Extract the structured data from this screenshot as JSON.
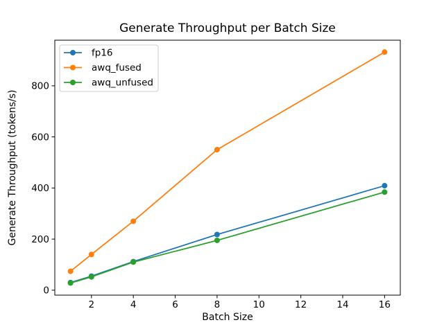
{
  "figure": {
    "background": "#ffffff"
  },
  "chart_data": {
    "type": "line",
    "title": "Generate Throughput per Batch Size",
    "xlabel": "Batch Size",
    "ylabel": "Generate Throughput (tokens/s)",
    "x": [
      1,
      2,
      4,
      8,
      16
    ],
    "series": [
      {
        "name": "fp16",
        "color": "#1f77b4",
        "values": [
          30,
          55,
          112,
          218,
          409
        ]
      },
      {
        "name": "awq_fused",
        "color": "#ff7f0e",
        "values": [
          74,
          140,
          270,
          550,
          932
        ]
      },
      {
        "name": "awq_unfused",
        "color": "#2ca02c",
        "values": [
          28,
          52,
          110,
          195,
          384
        ]
      }
    ],
    "marker": "o",
    "xticks": [
      2,
      4,
      6,
      8,
      10,
      12,
      14,
      16
    ],
    "yticks": [
      0,
      200,
      400,
      600,
      800
    ],
    "xlim": [
      0.25,
      16.75
    ],
    "ylim": [
      -19.3,
      978.6
    ],
    "grid": false,
    "legend_position": "upper left",
    "axis_color": "#000000"
  }
}
